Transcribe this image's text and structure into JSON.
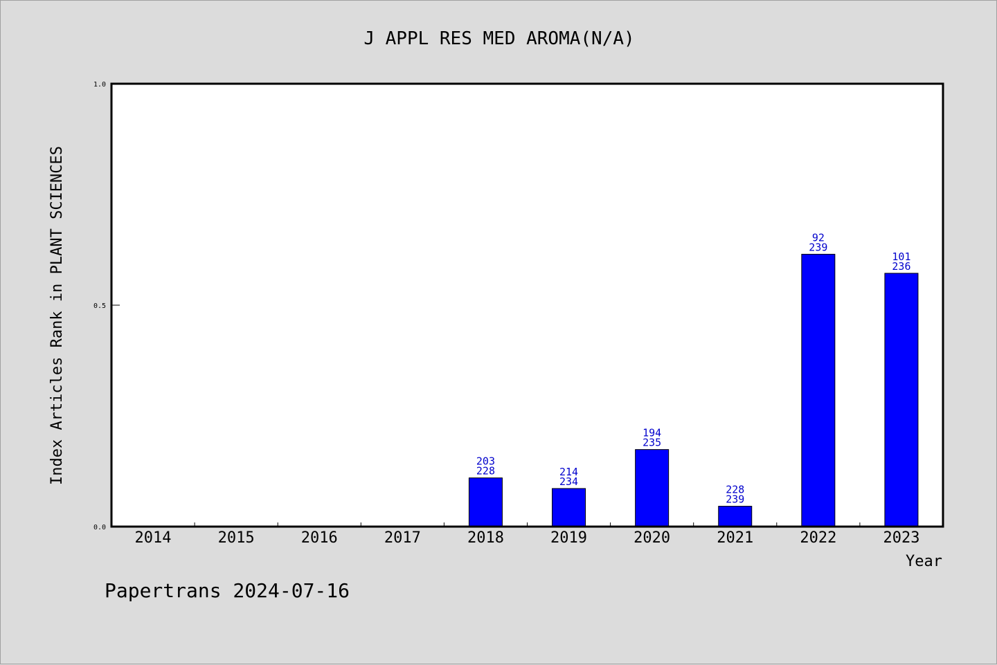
{
  "chart_data": {
    "type": "bar",
    "title": "J APPL RES MED AROMA(N/A)",
    "xlabel": "Year",
    "ylabel": "Index Articles Rank in PLANT SCIENCES",
    "ylim": [
      0,
      1.0
    ],
    "yticks": [
      "0.0",
      "0.5",
      "1.0"
    ],
    "categories": [
      "2014",
      "2015",
      "2016",
      "2017",
      "2018",
      "2019",
      "2020",
      "2021",
      "2022",
      "2023"
    ],
    "values": [
      null,
      null,
      null,
      null,
      0.11,
      0.086,
      0.174,
      0.046,
      0.615,
      0.572
    ],
    "labels": [
      null,
      null,
      null,
      null,
      [
        "203",
        "228"
      ],
      [
        "214",
        "234"
      ],
      [
        "194",
        "235"
      ],
      [
        "228",
        "239"
      ],
      [
        "92",
        "239"
      ],
      [
        "101",
        "236"
      ]
    ],
    "bar_color": "#0000ff",
    "label_color": "#0000cc",
    "grid": false,
    "legend": "none"
  },
  "footer": "Papertrans 2024-07-16"
}
